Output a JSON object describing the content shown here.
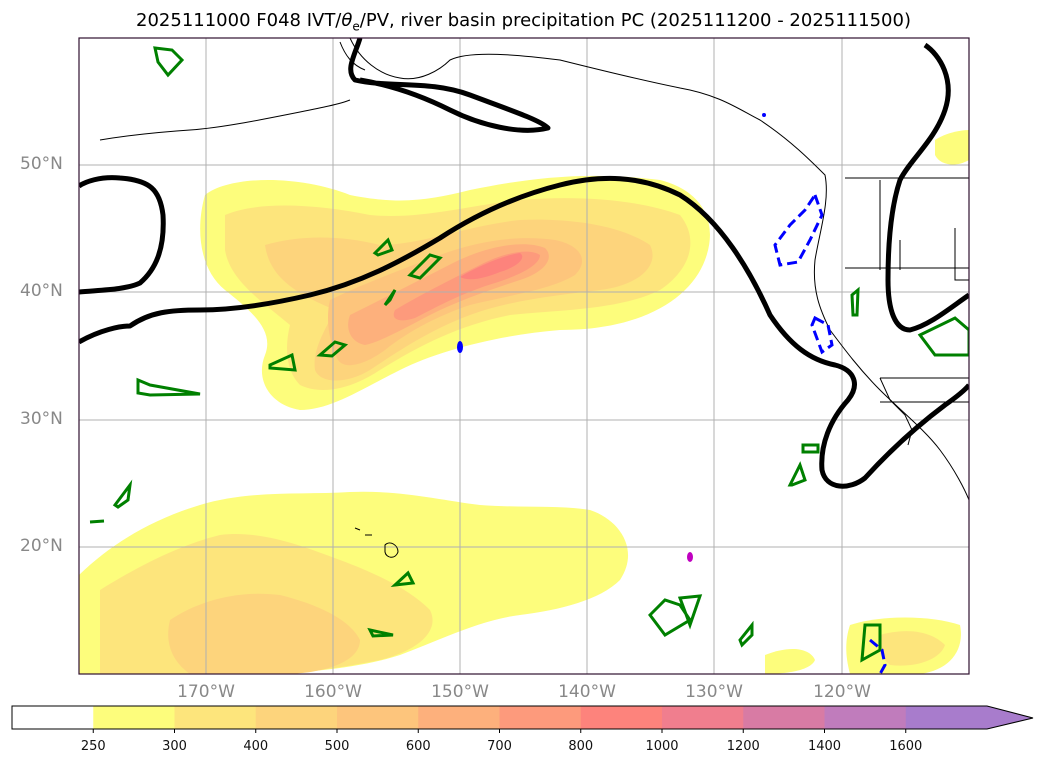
{
  "title": {
    "prefix": "2025111000 F048 IVT/",
    "theta": "θ",
    "theta_sub": "e",
    "suffix": "/PV, river basin precipitation PC (2025111200 - 2025111500)"
  },
  "map": {
    "lon_range": [
      -180,
      -110
    ],
    "lat_range": [
      10,
      60
    ],
    "lat_labels": [
      "50°N",
      "40°N",
      "30°N",
      "20°N"
    ],
    "lon_labels": [
      "170°W",
      "160°W",
      "150°W",
      "140°W",
      "130°W",
      "120°W"
    ],
    "ivt_shading_colors": {
      "250": "#fdfd7c",
      "300": "#fde57c",
      "400": "#fdd47c",
      "500": "#fdc57c",
      "600": "#fdb07c",
      "700": "#fd9a7c",
      "800": "#fd837c"
    },
    "pv_contour_color": "#000000",
    "theta_positive_color": "#008000",
    "theta_negative_color": "#0000ff"
  },
  "colorbar": {
    "levels": [
      "250",
      "300",
      "400",
      "500",
      "600",
      "700",
      "800",
      "1000",
      "1200",
      "1400",
      "1600"
    ],
    "colors": [
      "#ffffff",
      "#fdfd7c",
      "#fde57c",
      "#fdd47c",
      "#fdc57c",
      "#fdb07c",
      "#fd9a7c",
      "#fd837c",
      "#f07e8e",
      "#d87ba4",
      "#c07cbc",
      "#a87ccc"
    ],
    "extend": "max"
  }
}
